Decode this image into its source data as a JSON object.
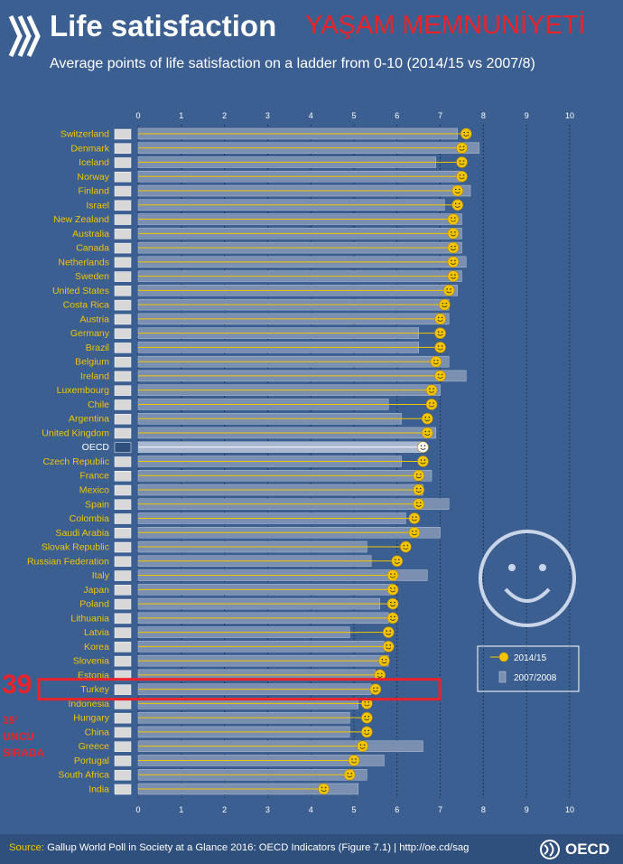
{
  "header": {
    "title": "Life satisfaction",
    "overlay_title": "YAŞAM MEMNUNİYETİ",
    "subtitle": "Average points of life satisfaction on a ladder from 0-10 (2014/15 vs 2007/8)"
  },
  "annotations": {
    "rank_number": "39",
    "rank_text_line1": "39'",
    "rank_text_line2": "UNCU",
    "rank_text_line3": "SIRADA",
    "highlight_color": "#e8242a",
    "highlighted_country": "Turkey"
  },
  "legend": {
    "items": [
      "2014/15",
      "2007/2008"
    ]
  },
  "footer": {
    "source_label": "Source:",
    "source_text": "Gallup World Poll in Society at a Glance 2016: OECD Indicators (Figure 7.1) | http://oe.cd/sag",
    "logo_text": "OECD"
  },
  "colors": {
    "background": "#3c5f91",
    "label_color": "#f2c500",
    "bar_2007": "#7b8fb0",
    "line_2014": "#f2c500",
    "oecd_row": "#ffffff"
  },
  "icons": {
    "marker": "smiley-face-icon",
    "big_decoration": "smiley-face-icon",
    "flags": "country-flag-icon"
  },
  "chart_data": {
    "type": "bar",
    "title": "Life satisfaction",
    "subtitle": "Average points of life satisfaction on a ladder from 0-10 (2014/15 vs 2007/8)",
    "xlim": [
      0,
      10
    ],
    "xticks": [
      0,
      1,
      2,
      3,
      4,
      5,
      6,
      7,
      8,
      9,
      10
    ],
    "grid": true,
    "legend_position": "right",
    "categories": [
      "Switzerland",
      "Denmark",
      "Iceland",
      "Norway",
      "Finland",
      "Israel",
      "New Zealand",
      "Australia",
      "Canada",
      "Netherlands",
      "Sweden",
      "United States",
      "Costa Rica",
      "Austria",
      "Germany",
      "Brazil",
      "Belgium",
      "Ireland",
      "Luxembourg",
      "Chile",
      "Argentina",
      "United Kingdom",
      "OECD",
      "Czech Republic",
      "France",
      "Mexico",
      "Spain",
      "Colombia",
      "Saudi Arabia",
      "Slovak Republic",
      "Russian Federation",
      "Italy",
      "Japan",
      "Poland",
      "Lithuania",
      "Latvia",
      "Korea",
      "Slovenia",
      "Estonia",
      "Turkey",
      "Indonesia",
      "Hungary",
      "China",
      "Greece",
      "Portugal",
      "South Africa",
      "India"
    ],
    "series": [
      {
        "name": "2014/15",
        "values": [
          7.6,
          7.5,
          7.5,
          7.5,
          7.4,
          7.4,
          7.3,
          7.3,
          7.3,
          7.3,
          7.3,
          7.2,
          7.1,
          7.0,
          7.0,
          7.0,
          6.9,
          7.0,
          6.8,
          6.8,
          6.7,
          6.7,
          6.6,
          6.6,
          6.5,
          6.5,
          6.5,
          6.4,
          6.4,
          6.2,
          6.0,
          5.9,
          5.9,
          5.9,
          5.9,
          5.8,
          5.8,
          5.7,
          5.6,
          5.5,
          5.3,
          5.3,
          5.3,
          5.2,
          5.0,
          4.9,
          4.3
        ]
      },
      {
        "name": "2007/2008",
        "values": [
          7.4,
          7.9,
          6.9,
          7.5,
          7.7,
          7.1,
          7.5,
          7.5,
          7.5,
          7.6,
          7.5,
          7.4,
          7.2,
          7.2,
          6.5,
          6.5,
          7.2,
          7.6,
          7.0,
          5.8,
          6.1,
          6.9,
          6.6,
          6.1,
          6.8,
          6.6,
          7.2,
          6.2,
          7.0,
          5.3,
          5.4,
          6.7,
          5.9,
          5.6,
          5.8,
          4.9,
          5.7,
          5.8,
          5.5,
          5.4,
          5.1,
          4.9,
          4.9,
          6.6,
          5.7,
          5.3,
          5.1
        ]
      }
    ]
  }
}
